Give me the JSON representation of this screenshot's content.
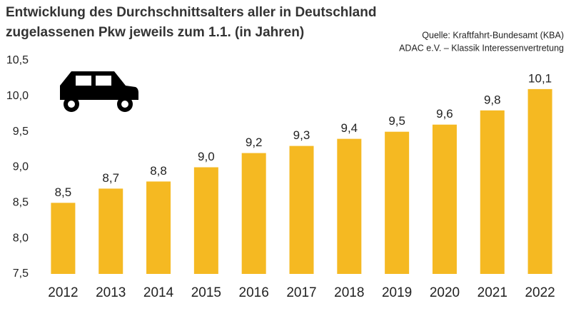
{
  "chart_data": {
    "type": "bar",
    "title": [
      "Entwicklung des Durchschnittsalters aller in Deutschland",
      "zugelassenen Pkw jeweils zum 1.1. (in Jahren)"
    ],
    "source": [
      "Quelle: Kraftfahrt-Bundesamt (KBA)",
      "ADAC e.V. – Klassik Interessenvertretung"
    ],
    "categories": [
      "2012",
      "2013",
      "2014",
      "2015",
      "2016",
      "2017",
      "2018",
      "2019",
      "2020",
      "2021",
      "2022"
    ],
    "values": [
      8.5,
      8.7,
      8.8,
      9.0,
      9.2,
      9.3,
      9.4,
      9.5,
      9.6,
      9.8,
      10.1
    ],
    "value_labels": [
      "8,5",
      "8,7",
      "8,8",
      "9,0",
      "9,2",
      "9,3",
      "9,4",
      "9,5",
      "9,6",
      "9,8",
      "10,1"
    ],
    "color": "#f5b922",
    "ylim": [
      7.5,
      10.5
    ],
    "yticks": [
      {
        "value": 7.5,
        "label": "7,5"
      },
      {
        "value": 8.0,
        "label": "8,0"
      },
      {
        "value": 8.5,
        "label": "8,5"
      },
      {
        "value": 9.0,
        "label": "9,0"
      },
      {
        "value": 9.5,
        "label": "9,5"
      },
      {
        "value": 10.0,
        "label": "10,0"
      },
      {
        "value": 10.5,
        "label": "10,5"
      }
    ],
    "grid": false
  }
}
